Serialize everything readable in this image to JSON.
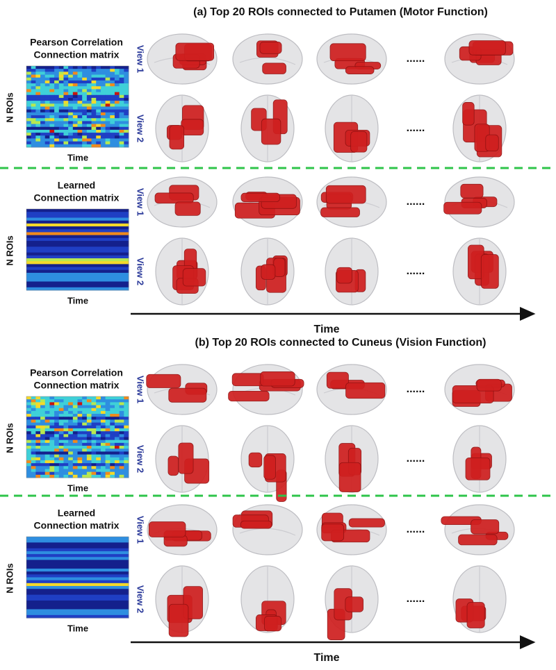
{
  "panels": [
    {
      "title": "(a) Top 20 ROIs connected to Putamen (Motor Function)",
      "blocks": [
        {
          "matrix_title": [
            "Pearson Correlation",
            "Connection matrix"
          ],
          "y_label": "N ROIs",
          "x_label": "Time",
          "views": [
            {
              "label": "View 1",
              "ellipsis": "......"
            },
            {
              "label": "View 2",
              "ellipsis": "......"
            }
          ]
        },
        {
          "matrix_title": [
            "Learned",
            "Connection matrix"
          ],
          "y_label": "N ROIs",
          "x_label": "Time",
          "views": [
            {
              "label": "View 1",
              "ellipsis": "......"
            },
            {
              "label": "View 2",
              "ellipsis": "......"
            }
          ]
        }
      ],
      "axis_label": "Time"
    },
    {
      "title": "(b) Top 20 ROIs connected to Cuneus (Vision Function)",
      "blocks": [
        {
          "matrix_title": [
            "Pearson Correlation",
            "Connection matrix"
          ],
          "y_label": "N ROIs",
          "x_label": "Time",
          "views": [
            {
              "label": "View 1",
              "ellipsis": "......"
            },
            {
              "label": "View 2",
              "ellipsis": "......"
            }
          ]
        },
        {
          "matrix_title": [
            "Learned",
            "Connection matrix"
          ],
          "y_label": "N ROIs",
          "x_label": "Time",
          "views": [
            {
              "label": "View 1",
              "ellipsis": "......"
            },
            {
              "label": "View 2",
              "ellipsis": "......"
            }
          ]
        }
      ],
      "axis_label": "Time"
    }
  ]
}
